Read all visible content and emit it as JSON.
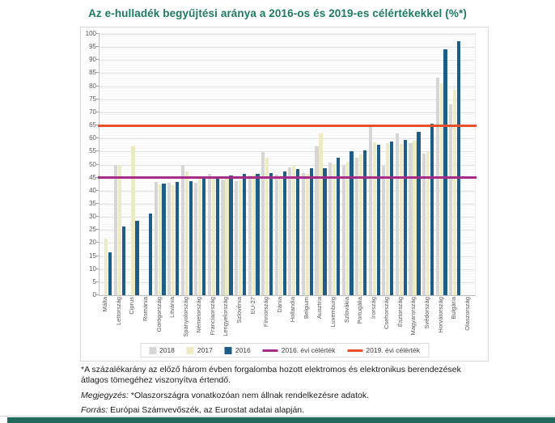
{
  "title": "Az e-hulladék begyűjtési aránya a 2016-os és 2019-es célértékekkel (%*)",
  "title_color": "#1e7a62",
  "footer_band_color": "#226b5b",
  "chart_data": {
    "type": "bar",
    "title": "Az e-hulladék begyűjtési aránya a 2016-os és 2019-es célértékekkel (%*)",
    "xlabel": "",
    "ylabel": "",
    "ylim": [
      0,
      100
    ],
    "ytick_step": 5,
    "grid": true,
    "legend_position": "bottom",
    "categories": [
      "Málta",
      "Lettország",
      "Ciprus",
      "Románia",
      "Görögország",
      "Litvánia",
      "Spanyolország",
      "Németország",
      "Franciaország",
      "Lengyelország",
      "Szlovénia",
      "EU-27",
      "Finnország",
      "Dánia",
      "Hollandia",
      "Belgium",
      "Ausztria",
      "Luxemburg",
      "Szlovákia",
      "Portugália",
      "Írország",
      "Csehország",
      "Észtország",
      "Magyarország",
      "Svédország",
      "Horvátország",
      "Bulgária",
      "Olaszország"
    ],
    "series": [
      {
        "name": "2018",
        "color": "#d6d6d6",
        "values": [
          null,
          49.5,
          null,
          null,
          43.4,
          43.0,
          50.0,
          43.1,
          46.4,
          44.3,
          43.8,
          45.8,
          54.8,
          46.2,
          48.9,
          46.9,
          57.0,
          50.8,
          49.8,
          52.5,
          64.4,
          49.4,
          61.8,
          58.2,
          54.1,
          83.3,
          73.0,
          null
        ]
      },
      {
        "name": "2017",
        "color": "#ecebc4",
        "values": [
          21.6,
          49.7,
          57.1,
          null,
          42.3,
          42.2,
          47.4,
          45.1,
          44.9,
          45.3,
          43.9,
          46.2,
          52.7,
          45.9,
          49.4,
          46.4,
          62.0,
          50.1,
          51.0,
          54.0,
          58.5,
          58.2,
          57.9,
          59.2,
          54.7,
          81.2,
          78.7,
          null
        ]
      },
      {
        "name": "2016",
        "color": "#1d5d87",
        "values": [
          16.3,
          26.2,
          28.6,
          31.4,
          42.8,
          43.4,
          43.6,
          44.9,
          45.1,
          45.7,
          46.3,
          46.4,
          46.6,
          47.3,
          48.3,
          48.6,
          48.7,
          52.7,
          55.2,
          55.5,
          57.7,
          58.7,
          59.5,
          62.5,
          65.7,
          94.1,
          97.1,
          null
        ]
      }
    ],
    "target_lines": [
      {
        "label": "2016. évi célérték",
        "value": 45,
        "color": "#a62c87"
      },
      {
        "label": "2019. évi célérték",
        "value": 65,
        "color": "#e8502a"
      }
    ]
  },
  "footnotes": {
    "asterisk": "*A százalékarány az előző három évben forgalomba hozott elektromos és elektronikus berendezések átlagos tömegéhez viszonyítva értendő.",
    "note_label": "Megjegyzés:",
    "note_text": " *Olaszországra vonatkozóan nem állnak rendelkezésre adatok.",
    "source_label": "Forrás:",
    "source_text": " Európai Számvevőszék, az Eurostat adatai alapján."
  }
}
